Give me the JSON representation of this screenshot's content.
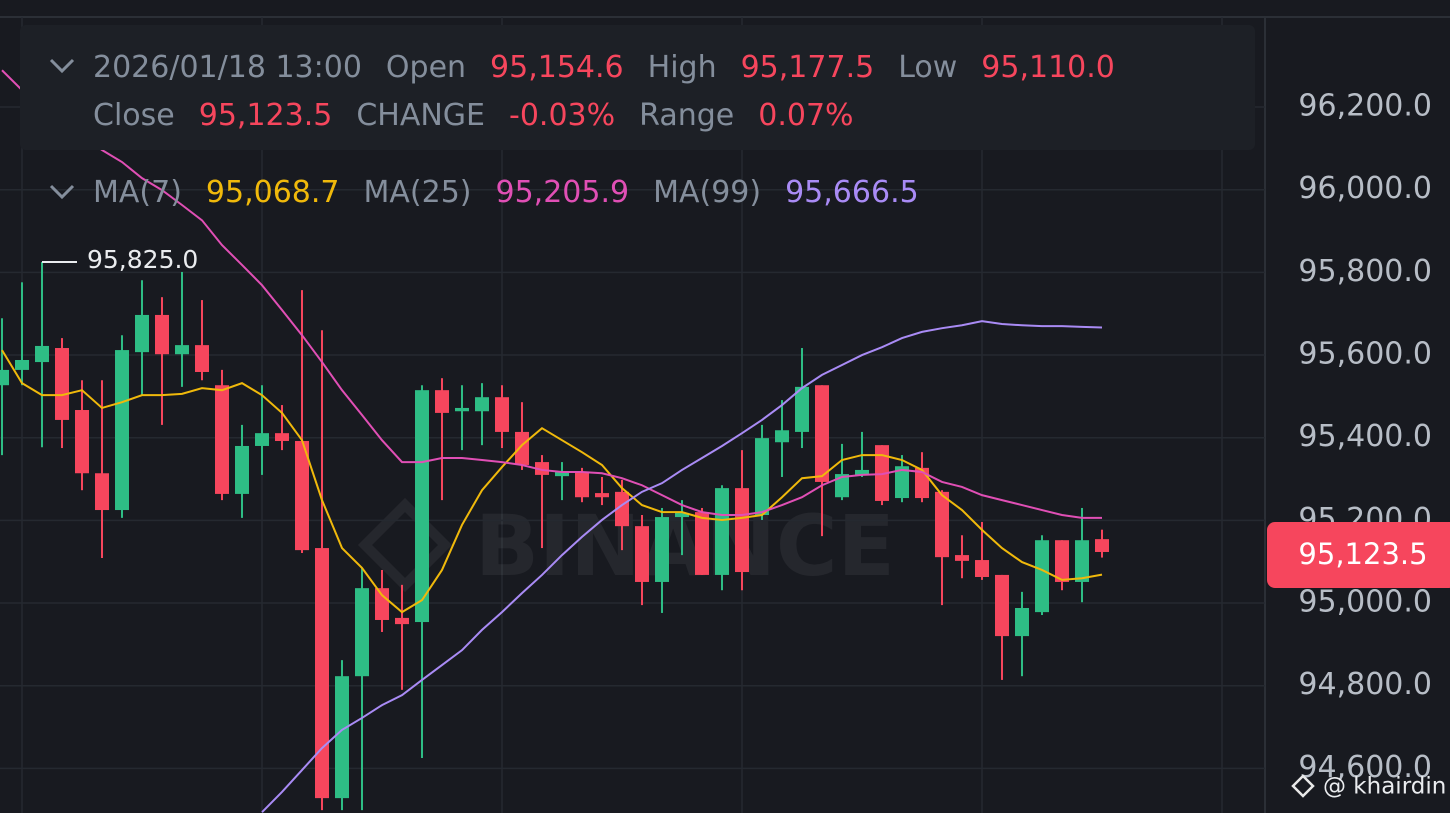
{
  "chart_data": {
    "type": "candlestick",
    "header": {
      "time": "2026/01/18 13:00",
      "fields": [
        {
          "label": "Open",
          "value": "95,154.6"
        },
        {
          "label": "High",
          "value": "95,177.5"
        },
        {
          "label": "Low",
          "value": "95,110.0"
        },
        {
          "label": "Close",
          "value": "95,123.5"
        },
        {
          "label": "CHANGE",
          "value": "-0.03%"
        },
        {
          "label": "Range",
          "value": "0.07%"
        }
      ]
    },
    "categories": [
      null,
      null,
      null,
      null,
      null,
      null,
      null,
      null,
      null,
      null,
      null,
      null,
      null,
      null,
      null,
      null,
      null,
      null,
      null,
      null,
      null,
      null,
      null,
      null,
      null,
      null,
      null,
      null,
      null,
      null,
      null,
      null,
      null,
      null,
      null,
      null,
      null,
      null,
      null,
      null,
      null,
      null,
      null,
      null,
      null,
      null,
      null,
      null,
      null,
      null,
      null,
      null,
      null,
      null,
      null,
      null
    ],
    "open": [
      95527,
      95564,
      95583,
      95617,
      95467,
      95314,
      95225,
      95607,
      95697,
      95602,
      95624,
      95527,
      95264,
      95380,
      95411,
      95392,
      95133,
      94528,
      94823,
      95036,
      94964,
      94954,
      95515,
      95464,
      95464,
      95498,
      95414,
      95341,
      95307,
      95317,
      95266,
      95269,
      95186,
      95051,
      95208,
      95220,
      95068,
      95278,
      95213,
      95389,
      95414,
      95527,
      95256,
      95310,
      95382,
      95254,
      95327,
      95269,
      95116,
      95104,
      95068,
      94920,
      94978,
      95152,
      95051,
      95154.6
    ],
    "high": [
      95689,
      95776,
      95825,
      95641,
      95539,
      95539,
      95648,
      95781,
      95740,
      95801,
      95733,
      95564,
      95431,
      95527,
      95479,
      95757,
      95660,
      94862,
      95085,
      95080,
      95044,
      95527,
      95544,
      95527,
      95532,
      95527,
      95486,
      95358,
      95341,
      95327,
      95305,
      95298,
      95213,
      95230,
      95249,
      95230,
      95285,
      95370,
      95431,
      95491,
      95617,
      95527,
      95385,
      95414,
      95382,
      95358,
      95365,
      95273,
      95164,
      95196,
      95068,
      95027,
      95164,
      95152,
      95230,
      95177.5
    ],
    "low": [
      95358,
      95527,
      95377,
      95375,
      95273,
      95109,
      95206,
      95503,
      95431,
      95523,
      95539,
      95249,
      95206,
      95310,
      95370,
      95121,
      94499,
      94499,
      94499,
      94930,
      94790,
      94625,
      95249,
      95370,
      95382,
      95375,
      95322,
      95133,
      95249,
      95244,
      95237,
      95128,
      94995,
      94976,
      95116,
      95068,
      95031,
      95031,
      95201,
      95305,
      95375,
      95162,
      95249,
      95305,
      95237,
      95244,
      95244,
      94995,
      95060,
      95056,
      94814,
      94823,
      94971,
      95031,
      95002,
      95110.0
    ],
    "close": [
      95564,
      95588,
      95622,
      95443,
      95314,
      95225,
      95612,
      95697,
      95602,
      95624,
      95559,
      95264,
      95380,
      95411,
      95392,
      95128,
      94528,
      94823,
      95036,
      94959,
      94949,
      95515,
      95460,
      95472,
      95498,
      95414,
      95334,
      95310,
      95317,
      95256,
      95256,
      95186,
      95051,
      95208,
      95218,
      95068,
      95278,
      95075,
      95399,
      95418,
      95523,
      95293,
      95312,
      95322,
      95247,
      95331,
      95254,
      95111,
      95102,
      95063,
      94920,
      94988,
      95152,
      95051,
      95152,
      95123.5
    ],
    "up_color": "#2ebd85",
    "down_color": "#f6465d",
    "series": [
      {
        "name": "MA(7)",
        "value_label": "95,068.7",
        "color": "#f0b90b",
        "values": [
          95612,
          95532,
          95503,
          95503,
          95515,
          95472,
          95486,
          95503,
          95503,
          95506,
          95520,
          95515,
          95532,
          95503,
          95460,
          95394,
          95249,
          95133,
          95085,
          95019,
          94978,
          95007,
          95080,
          95189,
          95273,
          95329,
          95382,
          95423,
          95394,
          95365,
          95334,
          95278,
          95237,
          95220,
          95220,
          95206,
          95201,
          95206,
          95213,
          95256,
          95302,
          95307,
          95346,
          95358,
          95358,
          95346,
          95322,
          95261,
          95225,
          95177,
          95133,
          95099,
          95080,
          95056,
          95060,
          95068.7
        ]
      },
      {
        "name": "MA(25)",
        "value_label": "95,205.9",
        "color": "#e04fb5",
        "values": [
          96289,
          96241,
          96205,
          96168,
          96132,
          96096,
          96067,
          96028,
          95999,
          95963,
          95926,
          95866,
          95818,
          95769,
          95709,
          95648,
          95583,
          95515,
          95455,
          95394,
          95341,
          95341,
          95351,
          95351,
          95346,
          95341,
          95334,
          95322,
          95317,
          95317,
          95314,
          95302,
          95285,
          95261,
          95237,
          95220,
          95213,
          95213,
          95220,
          95237,
          95256,
          95285,
          95305,
          95310,
          95312,
          95322,
          95317,
          95293,
          95281,
          95261,
          95249,
          95237,
          95225,
          95213,
          95206,
          95205.9
        ]
      },
      {
        "name": "MA(99)",
        "value_label": "95,666.5",
        "color": "#a98bf5",
        "values": [
          null,
          null,
          null,
          null,
          null,
          null,
          null,
          null,
          null,
          null,
          null,
          null,
          null,
          94494,
          94543,
          94596,
          94649,
          94693,
          94722,
          94753,
          94777,
          94814,
          94850,
          94886,
          94935,
          94978,
          95024,
          95068,
          95116,
          95160,
          95201,
          95237,
          95269,
          95290,
          95322,
          95351,
          95380,
          95411,
          95443,
          95479,
          95520,
          95552,
          95576,
          95600,
          95619,
          95641,
          95656,
          95665,
          95672,
          95682,
          95675,
          95672,
          95670,
          95670,
          95668,
          95666.5
        ]
      }
    ],
    "ylim": [
      94492,
      96459
    ],
    "yticks": [
      {
        "value": 94600,
        "label": "94,600.0"
      },
      {
        "value": 94800,
        "label": "94,800.0"
      },
      {
        "value": 95000,
        "label": "95,000.0"
      },
      {
        "value": 95200,
        "label": "95,200.0"
      },
      {
        "value": 95400,
        "label": "95,400.0"
      },
      {
        "value": 95600,
        "label": "95,600.0"
      },
      {
        "value": 95800,
        "label": "95,800.0"
      },
      {
        "value": 96000,
        "label": "96,000.0"
      },
      {
        "value": 96200,
        "label": "96,200.0"
      }
    ],
    "grid": true,
    "high_marker": {
      "value": 95825,
      "label": "95,825.0"
    },
    "last_price": {
      "value": 95123.5,
      "label": "95,123.5"
    },
    "watermark": "BINANCE",
    "credit": "@ khairdin"
  }
}
